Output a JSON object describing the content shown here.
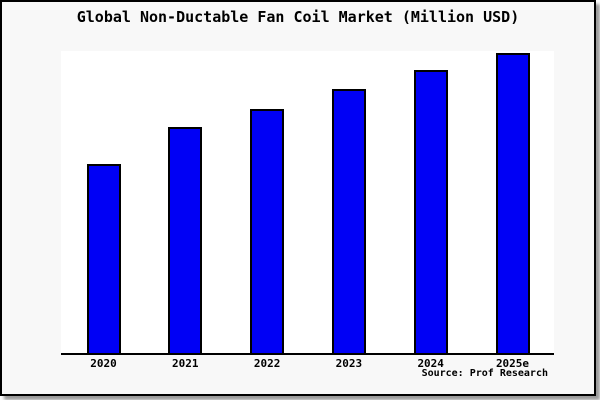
{
  "title": "Global Non-Ductable Fan Coil Market (Million USD)",
  "source_credit": "Source: Prof Research",
  "colors": {
    "bar_fill": "#0000f5",
    "bar_edge": "#000000",
    "plot_background": "#ffffff",
    "frame_background": "#f8f8f8",
    "frame_border": "#000000",
    "text": "#000000"
  },
  "chart_data": {
    "type": "bar",
    "title": "Global Non-Ductable Fan Coil Market (Million USD)",
    "categories": [
      "2020",
      "2021",
      "2022",
      "2023",
      "2024",
      "2025e"
    ],
    "values": [
      189,
      226,
      244,
      264,
      283,
      300
    ],
    "value_note": "relative bar heights estimated from pixels; chart displays no y-axis ticks or gridlines",
    "xlabel": "",
    "ylabel": "",
    "ylim": [
      0,
      302
    ],
    "grid": false,
    "legend": false,
    "annotation": "Source: Prof Research"
  }
}
